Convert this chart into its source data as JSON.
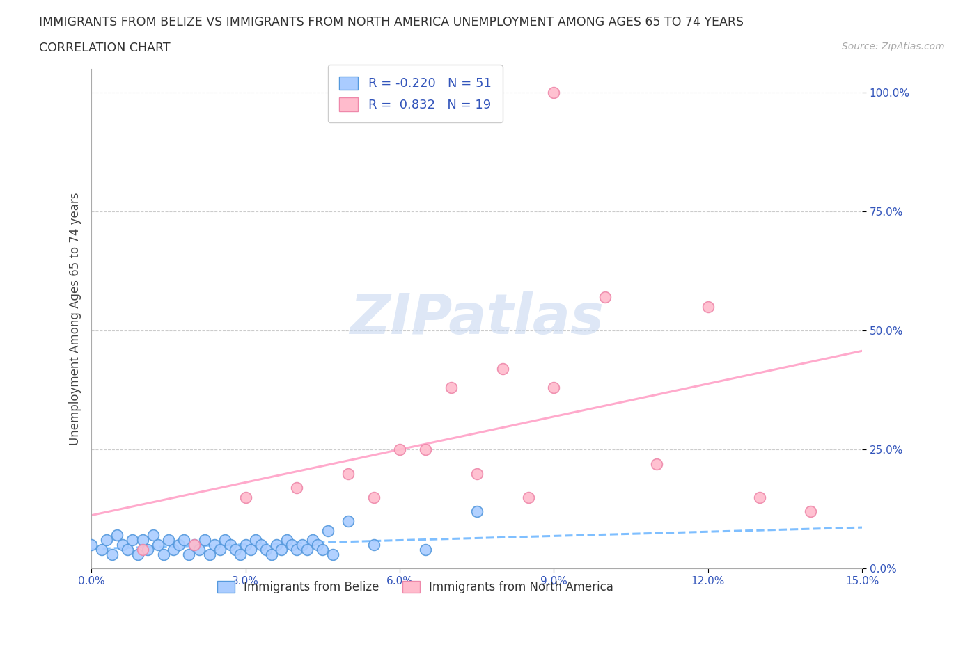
{
  "title_line1": "IMMIGRANTS FROM BELIZE VS IMMIGRANTS FROM NORTH AMERICA UNEMPLOYMENT AMONG AGES 65 TO 74 YEARS",
  "title_line2": "CORRELATION CHART",
  "source_text": "Source: ZipAtlas.com",
  "ylabel": "Unemployment Among Ages 65 to 74 years",
  "xlim": [
    0.0,
    0.15
  ],
  "ylim": [
    0.0,
    1.05
  ],
  "yticks": [
    0.0,
    0.25,
    0.5,
    0.75,
    1.0
  ],
  "ytick_labels": [
    "0.0%",
    "25.0%",
    "50.0%",
    "75.0%",
    "100.0%"
  ],
  "xticks": [
    0.0,
    0.03,
    0.06,
    0.09,
    0.12,
    0.15
  ],
  "xtick_labels": [
    "0.0%",
    "3.0%",
    "6.0%",
    "9.0%",
    "12.0%",
    "15.0%"
  ],
  "belize_color": "#aaccff",
  "belize_edge_color": "#5599dd",
  "north_america_color": "#ffbbcc",
  "north_america_edge_color": "#ee88aa",
  "belize_R": -0.22,
  "belize_N": 51,
  "north_america_R": 0.832,
  "north_america_N": 19,
  "belize_scatter_x": [
    0.0,
    0.002,
    0.003,
    0.004,
    0.005,
    0.006,
    0.007,
    0.008,
    0.009,
    0.01,
    0.011,
    0.012,
    0.013,
    0.014,
    0.015,
    0.016,
    0.017,
    0.018,
    0.019,
    0.02,
    0.021,
    0.022,
    0.023,
    0.024,
    0.025,
    0.026,
    0.027,
    0.028,
    0.029,
    0.03,
    0.031,
    0.032,
    0.033,
    0.034,
    0.035,
    0.036,
    0.037,
    0.038,
    0.039,
    0.04,
    0.041,
    0.042,
    0.043,
    0.044,
    0.045,
    0.046,
    0.047,
    0.05,
    0.055,
    0.065,
    0.075
  ],
  "belize_scatter_y": [
    0.05,
    0.04,
    0.06,
    0.03,
    0.07,
    0.05,
    0.04,
    0.06,
    0.03,
    0.06,
    0.04,
    0.07,
    0.05,
    0.03,
    0.06,
    0.04,
    0.05,
    0.06,
    0.03,
    0.05,
    0.04,
    0.06,
    0.03,
    0.05,
    0.04,
    0.06,
    0.05,
    0.04,
    0.03,
    0.05,
    0.04,
    0.06,
    0.05,
    0.04,
    0.03,
    0.05,
    0.04,
    0.06,
    0.05,
    0.04,
    0.05,
    0.04,
    0.06,
    0.05,
    0.04,
    0.08,
    0.03,
    0.1,
    0.05,
    0.04,
    0.12
  ],
  "na_scatter_x": [
    0.01,
    0.02,
    0.03,
    0.04,
    0.05,
    0.055,
    0.06,
    0.065,
    0.07,
    0.075,
    0.08,
    0.085,
    0.09,
    0.1,
    0.11,
    0.12,
    0.13,
    0.14,
    0.09
  ],
  "na_scatter_y": [
    0.04,
    0.05,
    0.15,
    0.17,
    0.2,
    0.15,
    0.25,
    0.25,
    0.38,
    0.2,
    0.42,
    0.15,
    1.0,
    0.57,
    0.22,
    0.55,
    0.15,
    0.12,
    0.38
  ],
  "watermark_text": "ZIPatlas",
  "watermark_color": "#c8d8f0",
  "legend_color": "#3355bb",
  "belize_line_color": "#7fbfff",
  "na_line_color": "#ffaacc",
  "grid_color": "#cccccc",
  "background_color": "#ffffff",
  "bottom_legend_labels": [
    "Immigrants from Belize",
    "Immigrants from North America"
  ]
}
